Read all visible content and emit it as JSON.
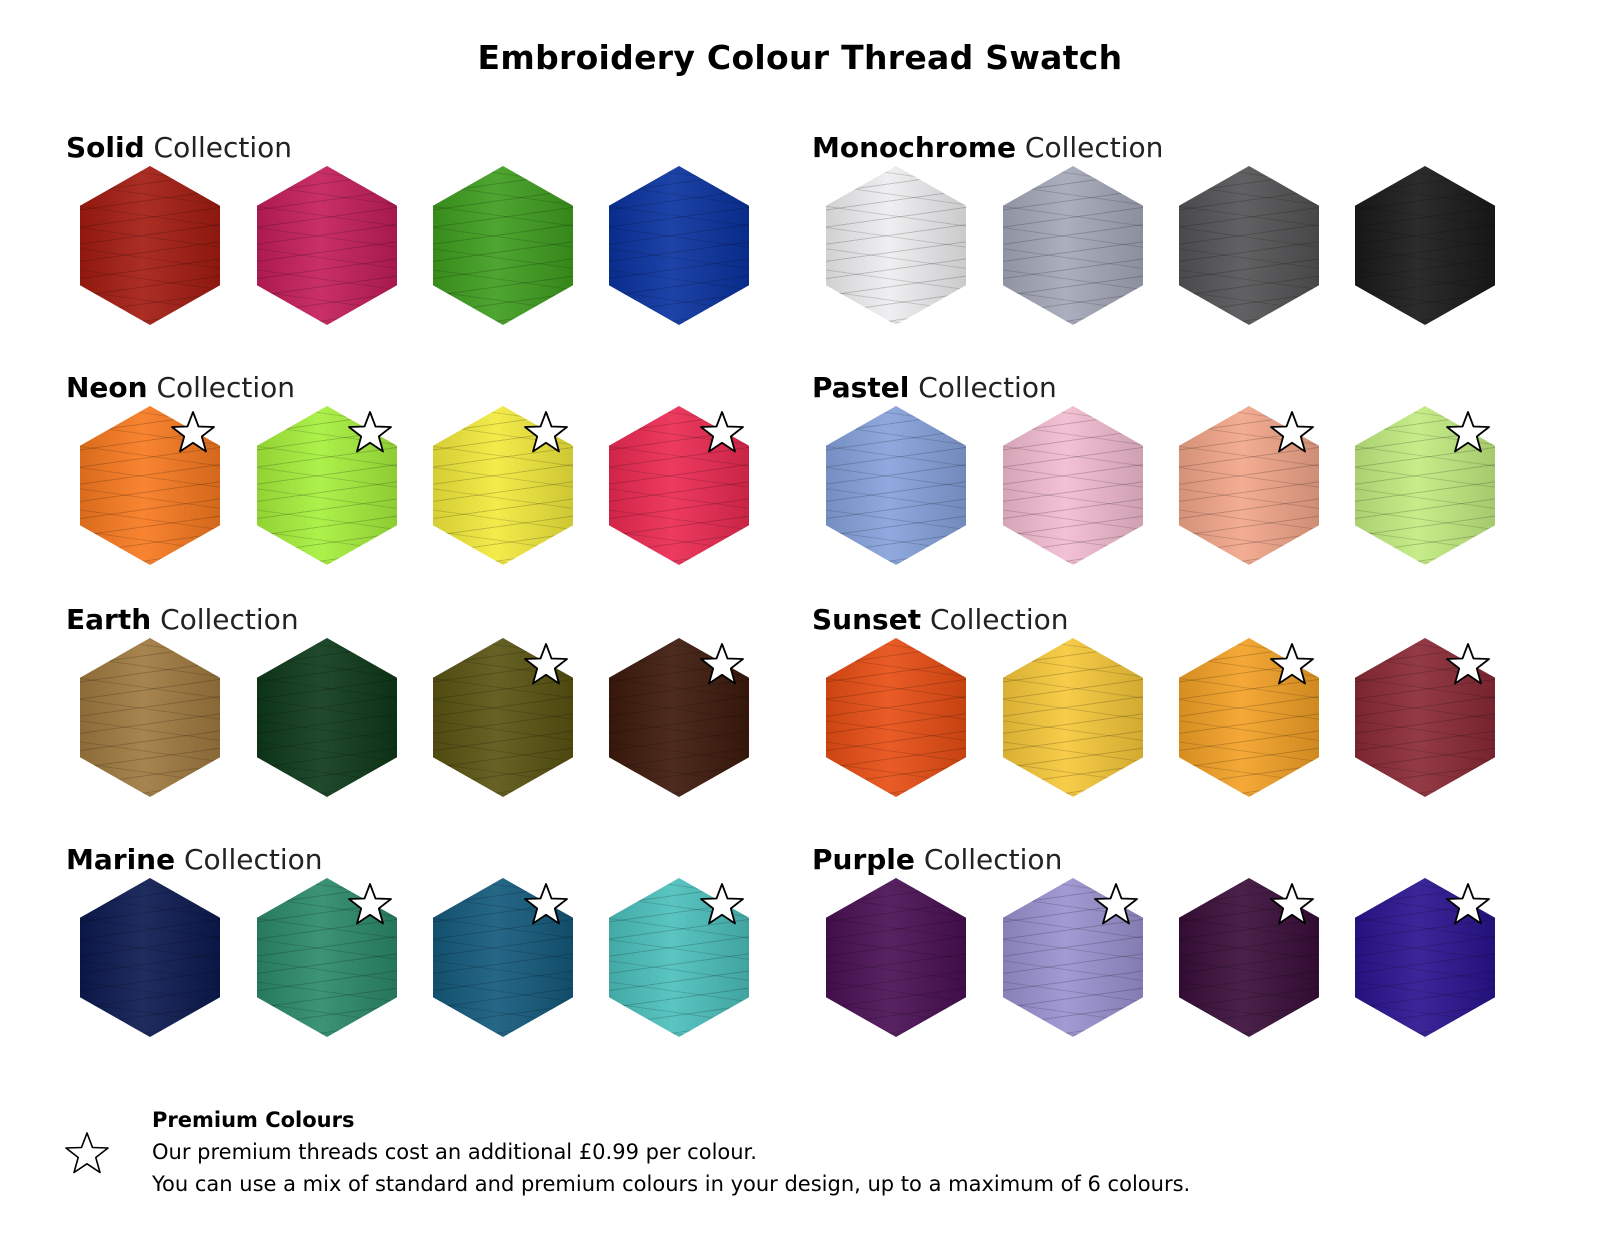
{
  "title": "Embroidery Colour Thread Swatch",
  "collection_suffix": "Collection",
  "collections": [
    {
      "name": "Solid",
      "swatches": [
        {
          "color": "#a41c12",
          "premium": false
        },
        {
          "color": "#c41e5a",
          "premium": false
        },
        {
          "color": "#3f9e1f",
          "premium": false
        },
        {
          "color": "#0a33a0",
          "premium": false
        }
      ]
    },
    {
      "name": "Monochrome",
      "swatches": [
        {
          "color": "#eeeef0",
          "premium": false
        },
        {
          "color": "#a4a8b8",
          "premium": false
        },
        {
          "color": "#545456",
          "premium": false
        },
        {
          "color": "#1a1a1a",
          "premium": false
        }
      ]
    },
    {
      "name": "Neon",
      "swatches": [
        {
          "color": "#f87a20",
          "premium": true
        },
        {
          "color": "#a6f03c",
          "premium": true
        },
        {
          "color": "#f2ea3c",
          "premium": true
        },
        {
          "color": "#ec2a52",
          "premium": true
        }
      ]
    },
    {
      "name": "Pastel",
      "swatches": [
        {
          "color": "#86a2dc",
          "premium": false
        },
        {
          "color": "#f2bcd0",
          "premium": false
        },
        {
          "color": "#f2a68a",
          "premium": true
        },
        {
          "color": "#c2ec80",
          "premium": true
        }
      ]
    },
    {
      "name": "Earth",
      "swatches": [
        {
          "color": "#a07a40",
          "premium": false
        },
        {
          "color": "#0e3a1a",
          "premium": false
        },
        {
          "color": "#5a5412",
          "premium": true
        },
        {
          "color": "#3e1a0c",
          "premium": true
        }
      ]
    },
    {
      "name": "Sunset",
      "swatches": [
        {
          "color": "#e84e14",
          "premium": false
        },
        {
          "color": "#f6c83a",
          "premium": false
        },
        {
          "color": "#f3a126",
          "premium": true
        },
        {
          "color": "#8a2a36",
          "premium": true
        }
      ]
    },
    {
      "name": "Marine",
      "swatches": [
        {
          "color": "#0c1a50",
          "premium": false
        },
        {
          "color": "#2c8a6a",
          "premium": true
        },
        {
          "color": "#145a7c",
          "premium": true
        },
        {
          "color": "#4cc0bc",
          "premium": true
        }
      ]
    },
    {
      "name": "Purple",
      "swatches": [
        {
          "color": "#4a1054",
          "premium": false
        },
        {
          "color": "#9a92d0",
          "premium": true
        },
        {
          "color": "#3a0e3a",
          "premium": true
        },
        {
          "color": "#2a1490",
          "premium": true
        }
      ]
    }
  ],
  "legend": {
    "icon": "star-outline-icon",
    "heading": "Premium Colours",
    "line1": "Our premium threads cost an additional £0.99 per colour.",
    "line2": "You can use a mix of standard and premium colours in your design, up to a maximum of 6 colours."
  }
}
